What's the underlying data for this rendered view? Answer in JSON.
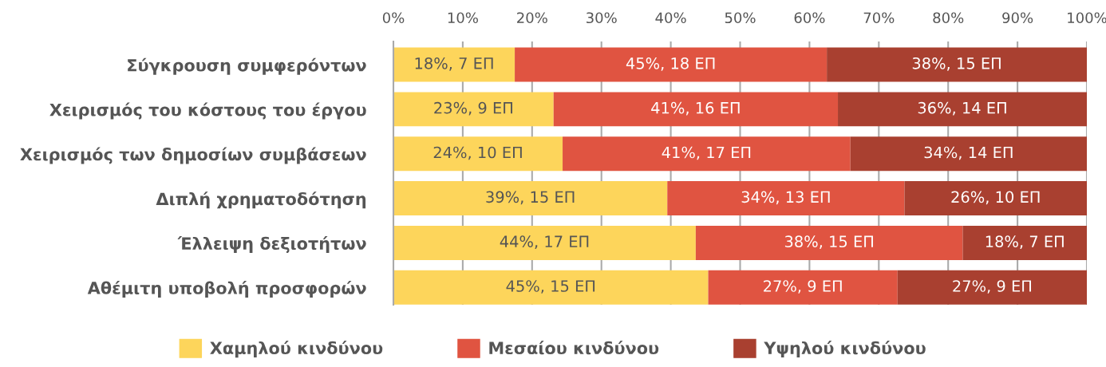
{
  "chart_data": {
    "type": "bar",
    "orientation": "horizontal",
    "stacked": true,
    "categories": [
      "Σύγκρουση συμφερόντων",
      "Χειρισμός του κόστους του έργου",
      "Χειρισμός των δημοσίων συμβάσεων",
      "Διπλή χρηματοδότηση",
      "Έλλειψη δεξιοτήτων",
      "Αθέμιτη υποβολή προσφορών"
    ],
    "series": [
      {
        "name": "Χαμηλού κινδύνου",
        "color": "#fdd55b",
        "values": [
          17.5,
          23.1,
          24.4,
          39.5,
          43.6,
          45.4
        ],
        "value_labels": [
          "18%, 7 ΕΠ",
          "23%, 9 ΕΠ",
          "24%, 10 ΕΠ",
          "39%, 15 ΕΠ",
          "44%, 17 ΕΠ",
          "45%, 15 ΕΠ"
        ]
      },
      {
        "name": "Μεσαίου κινδύνου",
        "color": "#e05441",
        "values": [
          45.0,
          41.0,
          41.5,
          34.2,
          38.5,
          27.3
        ],
        "value_labels": [
          "45%, 18 ΕΠ",
          "41%, 16 ΕΠ",
          "41%, 17 ΕΠ",
          "34%, 13 ΕΠ",
          "38%, 15 ΕΠ",
          "27%, 9 ΕΠ"
        ]
      },
      {
        "name": "Υψηλού κινδύνου",
        "color": "#a94030",
        "values": [
          37.5,
          35.9,
          34.1,
          26.3,
          17.9,
          27.3
        ],
        "value_labels": [
          "38%, 15 ΕΠ",
          "36%, 14 ΕΠ",
          "34%, 14 ΕΠ",
          "26%, 10 ΕΠ",
          "18%, 7 ΕΠ",
          "27%, 9 ΕΠ"
        ]
      }
    ],
    "xlim": [
      0,
      100
    ],
    "xticks": [
      {
        "value": 0,
        "label": "0%"
      },
      {
        "value": 10,
        "label": "10%"
      },
      {
        "value": 20,
        "label": "20%"
      },
      {
        "value": 30,
        "label": "30%"
      },
      {
        "value": 40,
        "label": "40%"
      },
      {
        "value": 50,
        "label": "50%"
      },
      {
        "value": 60,
        "label": "60%"
      },
      {
        "value": 70,
        "label": "70%"
      },
      {
        "value": 80,
        "label": "80%"
      },
      {
        "value": 90,
        "label": "90%"
      },
      {
        "value": 100,
        "label": "100%"
      }
    ],
    "grid": "x",
    "legend": "bottom"
  }
}
